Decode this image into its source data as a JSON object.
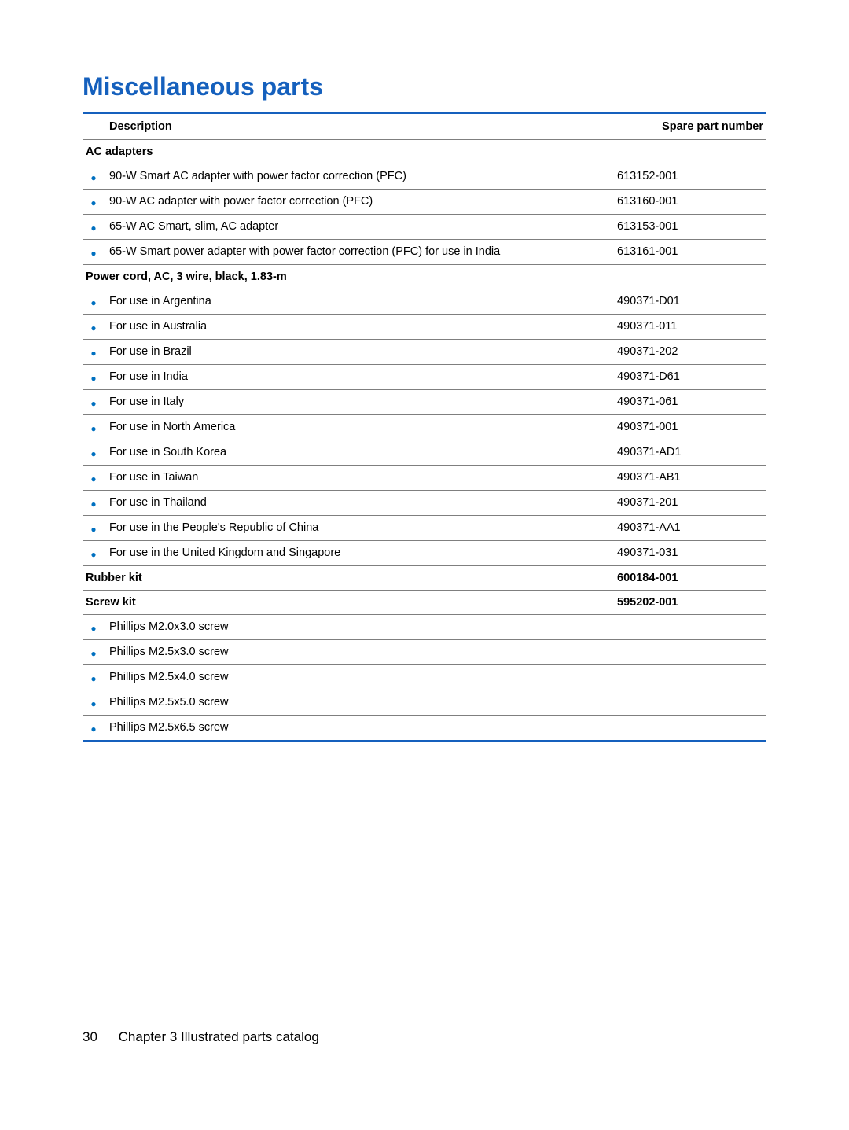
{
  "colors": {
    "title": "#1560bd",
    "border": "#1560bd",
    "row_border": "#7f7f7f",
    "bullet": "#0070c0",
    "text": "#000000"
  },
  "title": "Miscellaneous parts",
  "headers": {
    "description": "Description",
    "part": "Spare part number"
  },
  "sections": [
    {
      "heading": "AC adapters",
      "heading_part": "",
      "items": [
        {
          "desc": "90-W Smart AC adapter with power factor correction (PFC)",
          "part": "613152-001"
        },
        {
          "desc": "90-W AC adapter with power factor correction (PFC)",
          "part": "613160-001"
        },
        {
          "desc": "65-W AC Smart, slim, AC adapter",
          "part": "613153-001"
        },
        {
          "desc": "65-W Smart power adapter with power factor correction (PFC) for use in India",
          "part": "613161-001"
        }
      ]
    },
    {
      "heading": "Power cord, AC, 3 wire, black, 1.83-m",
      "heading_part": "",
      "items": [
        {
          "desc": "For use in Argentina",
          "part": "490371-D01"
        },
        {
          "desc": "For use in Australia",
          "part": "490371-011"
        },
        {
          "desc": "For use in Brazil",
          "part": "490371-202"
        },
        {
          "desc": "For use in India",
          "part": "490371-D61"
        },
        {
          "desc": "For use in Italy",
          "part": "490371-061"
        },
        {
          "desc": "For use in North America",
          "part": "490371-001"
        },
        {
          "desc": "For use in South Korea",
          "part": "490371-AD1"
        },
        {
          "desc": "For use in Taiwan",
          "part": "490371-AB1"
        },
        {
          "desc": "For use in Thailand",
          "part": "490371-201"
        },
        {
          "desc": "For use in the People's Republic of China",
          "part": "490371-AA1"
        },
        {
          "desc": "For use in the United Kingdom and Singapore",
          "part": "490371-031"
        }
      ]
    },
    {
      "heading": "Rubber kit",
      "heading_part": "600184-001",
      "items": []
    },
    {
      "heading": "Screw kit",
      "heading_part": "595202-001",
      "items": [
        {
          "desc": "Phillips M2.0x3.0 screw",
          "part": ""
        },
        {
          "desc": "Phillips M2.5x3.0 screw",
          "part": ""
        },
        {
          "desc": "Phillips M2.5x4.0 screw",
          "part": ""
        },
        {
          "desc": "Phillips M2.5x5.0 screw",
          "part": ""
        },
        {
          "desc": "Phillips M2.5x6.5 screw",
          "part": ""
        }
      ]
    }
  ],
  "footer": {
    "page_number": "30",
    "chapter": "Chapter 3   Illustrated parts catalog"
  },
  "bullet_glyph": "●"
}
